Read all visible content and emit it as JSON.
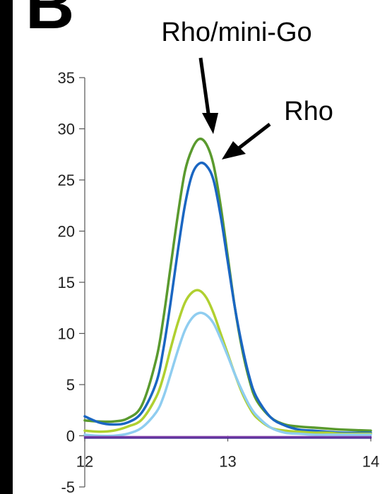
{
  "panel_label": "B",
  "chart_data": {
    "type": "line",
    "title": "",
    "xlabel": "",
    "ylabel": "",
    "xlim": [
      12,
      14
    ],
    "ylim": [
      -5,
      35
    ],
    "x_ticks": [
      "12",
      "13",
      "14"
    ],
    "y_ticks": [
      "-5",
      "0",
      "5",
      "10",
      "15",
      "20",
      "25",
      "30",
      "35"
    ],
    "grid": false,
    "series": [
      {
        "color": "#5a9a2e",
        "x": [
          12.0,
          12.1,
          12.2,
          12.3,
          12.4,
          12.5,
          12.55,
          12.6,
          12.65,
          12.7,
          12.75,
          12.8,
          12.85,
          12.9,
          12.95,
          13.0,
          13.05,
          13.1,
          13.15,
          13.2,
          13.3,
          13.4,
          13.5,
          13.6,
          13.7,
          13.8,
          14.0
        ],
        "y": [
          1.5,
          1.4,
          1.4,
          1.7,
          3.0,
          7.5,
          11.5,
          16.5,
          21.5,
          25.8,
          28.0,
          29.0,
          28.5,
          26.5,
          22.5,
          17.5,
          12.5,
          8.5,
          5.5,
          3.5,
          1.8,
          1.1,
          0.9,
          0.8,
          0.7,
          0.6,
          0.5
        ]
      },
      {
        "color": "#1a66c2",
        "x": [
          12.0,
          12.1,
          12.2,
          12.3,
          12.4,
          12.5,
          12.55,
          12.6,
          12.65,
          12.7,
          12.75,
          12.8,
          12.85,
          12.9,
          12.95,
          13.0,
          13.05,
          13.1,
          13.15,
          13.2,
          13.3,
          13.4,
          13.5,
          13.6,
          13.7,
          13.8,
          14.0
        ],
        "y": [
          1.9,
          1.3,
          1.1,
          1.3,
          2.3,
          5.2,
          8.5,
          13.0,
          18.0,
          22.5,
          25.5,
          26.6,
          26.4,
          25.0,
          21.5,
          17.0,
          12.5,
          8.8,
          5.8,
          3.8,
          1.8,
          1.0,
          0.6,
          0.5,
          0.4,
          0.3,
          0.3
        ]
      },
      {
        "color": "#b0d030",
        "x": [
          12.0,
          12.1,
          12.2,
          12.3,
          12.4,
          12.5,
          12.55,
          12.6,
          12.65,
          12.7,
          12.75,
          12.8,
          12.85,
          12.9,
          12.95,
          13.0,
          13.05,
          13.1,
          13.15,
          13.2,
          13.3,
          13.4,
          13.5,
          13.6,
          13.7,
          13.8,
          14.0
        ],
        "y": [
          0.5,
          0.4,
          0.5,
          0.9,
          1.6,
          3.8,
          5.8,
          8.5,
          11.0,
          13.0,
          14.0,
          14.2,
          13.5,
          12.0,
          10.0,
          8.0,
          6.0,
          4.2,
          2.8,
          1.8,
          0.8,
          0.5,
          0.4,
          0.3,
          0.3,
          0.2,
          0.2
        ]
      },
      {
        "color": "#8fcdf0",
        "x": [
          12.0,
          12.1,
          12.2,
          12.3,
          12.4,
          12.5,
          12.55,
          12.6,
          12.65,
          12.7,
          12.75,
          12.8,
          12.85,
          12.9,
          12.95,
          13.0,
          13.05,
          13.1,
          13.15,
          13.2,
          13.3,
          13.4,
          13.5,
          13.6,
          13.7,
          13.8,
          14.0
        ],
        "y": [
          0.1,
          0.0,
          0.0,
          0.2,
          0.8,
          2.3,
          3.8,
          6.0,
          8.3,
          10.3,
          11.5,
          12.0,
          11.8,
          11.0,
          9.5,
          7.8,
          6.0,
          4.4,
          3.0,
          2.0,
          0.8,
          0.3,
          0.2,
          0.1,
          0.1,
          0.1,
          0.1
        ]
      },
      {
        "color": "#3a1e8c",
        "x": [
          12.0,
          12.5,
          13.0,
          13.5,
          14.0
        ],
        "y": [
          -0.2,
          -0.2,
          -0.2,
          -0.2,
          -0.2
        ]
      },
      {
        "color": "#7a3fa8",
        "x": [
          12.0,
          12.5,
          13.0,
          13.5,
          14.0
        ],
        "y": [
          -0.1,
          -0.1,
          -0.1,
          -0.1,
          -0.1
        ]
      }
    ],
    "annotations": [
      {
        "text": "Rho/mini-Go",
        "points_to": {
          "x": 12.92,
          "y": 29.0
        }
      },
      {
        "text": "Rho",
        "points_to": {
          "x": 12.98,
          "y": 26.6
        }
      }
    ]
  }
}
